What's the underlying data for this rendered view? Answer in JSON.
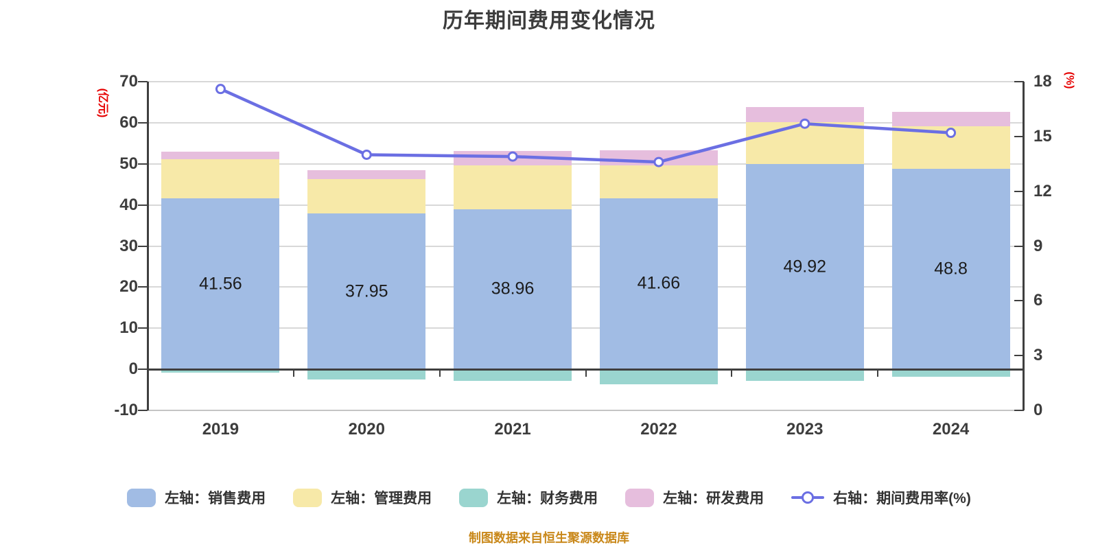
{
  "title": "历年期间费用变化情况",
  "footer": "制图数据来自恒生聚源数据库",
  "colors": {
    "sales_bar": "#a1bce4",
    "admin_bar": "#f7e9a8",
    "finance_bar": "#9ad5cf",
    "rnd_bar": "#e6bedd",
    "rate_line": "#6b6fe3",
    "marker_fill": "#ffffff",
    "grid": "#d8d8d8",
    "axis": "#3f3f3f",
    "title_text": "#3c3c3c",
    "unit_text": "#e60000",
    "footer_text": "#c9881a"
  },
  "chart_data": {
    "type": "bar",
    "subtype": "stacked-bar-with-line",
    "title": "历年期间费用变化情况",
    "categories": [
      "2019",
      "2020",
      "2021",
      "2022",
      "2023",
      "2024"
    ],
    "series": [
      {
        "name": "左轴：销售费用",
        "type": "bar",
        "axis": "left",
        "color": "#a1bce4",
        "values": [
          41.56,
          37.95,
          38.96,
          41.66,
          49.92,
          48.8
        ]
      },
      {
        "name": "左轴：管理费用",
        "type": "bar",
        "axis": "left",
        "color": "#f7e9a8",
        "values": [
          9.5,
          8.4,
          10.6,
          7.9,
          10.3,
          10.4
        ]
      },
      {
        "name": "左轴：财务费用",
        "type": "bar",
        "axis": "left",
        "color": "#9ad5cf",
        "values": [
          -0.8,
          -2.5,
          -2.9,
          -3.6,
          -2.9,
          -1.8
        ]
      },
      {
        "name": "左轴：研发费用",
        "type": "bar",
        "axis": "left",
        "color": "#e6bedd",
        "values": [
          1.9,
          2.1,
          3.6,
          3.8,
          3.6,
          3.4
        ]
      },
      {
        "name": "右轴：期间费用率(%)",
        "type": "line",
        "axis": "right",
        "color": "#6b6fe3",
        "values": [
          17.6,
          14.0,
          13.9,
          13.6,
          15.7,
          15.2
        ]
      }
    ],
    "bar_labels": [
      "41.56",
      "37.95",
      "38.96",
      "41.66",
      "49.92",
      "48.8"
    ],
    "left_axis": {
      "unit": "(亿元)",
      "min": -10,
      "max": 70,
      "ticks": [
        70,
        60,
        50,
        40,
        30,
        20,
        10,
        0,
        -10
      ]
    },
    "right_axis": {
      "unit": "(%)",
      "min": 0,
      "max": 18,
      "ticks": [
        18,
        15,
        12,
        9,
        6,
        3,
        0
      ]
    },
    "grid": true,
    "legend_position": "bottom"
  }
}
